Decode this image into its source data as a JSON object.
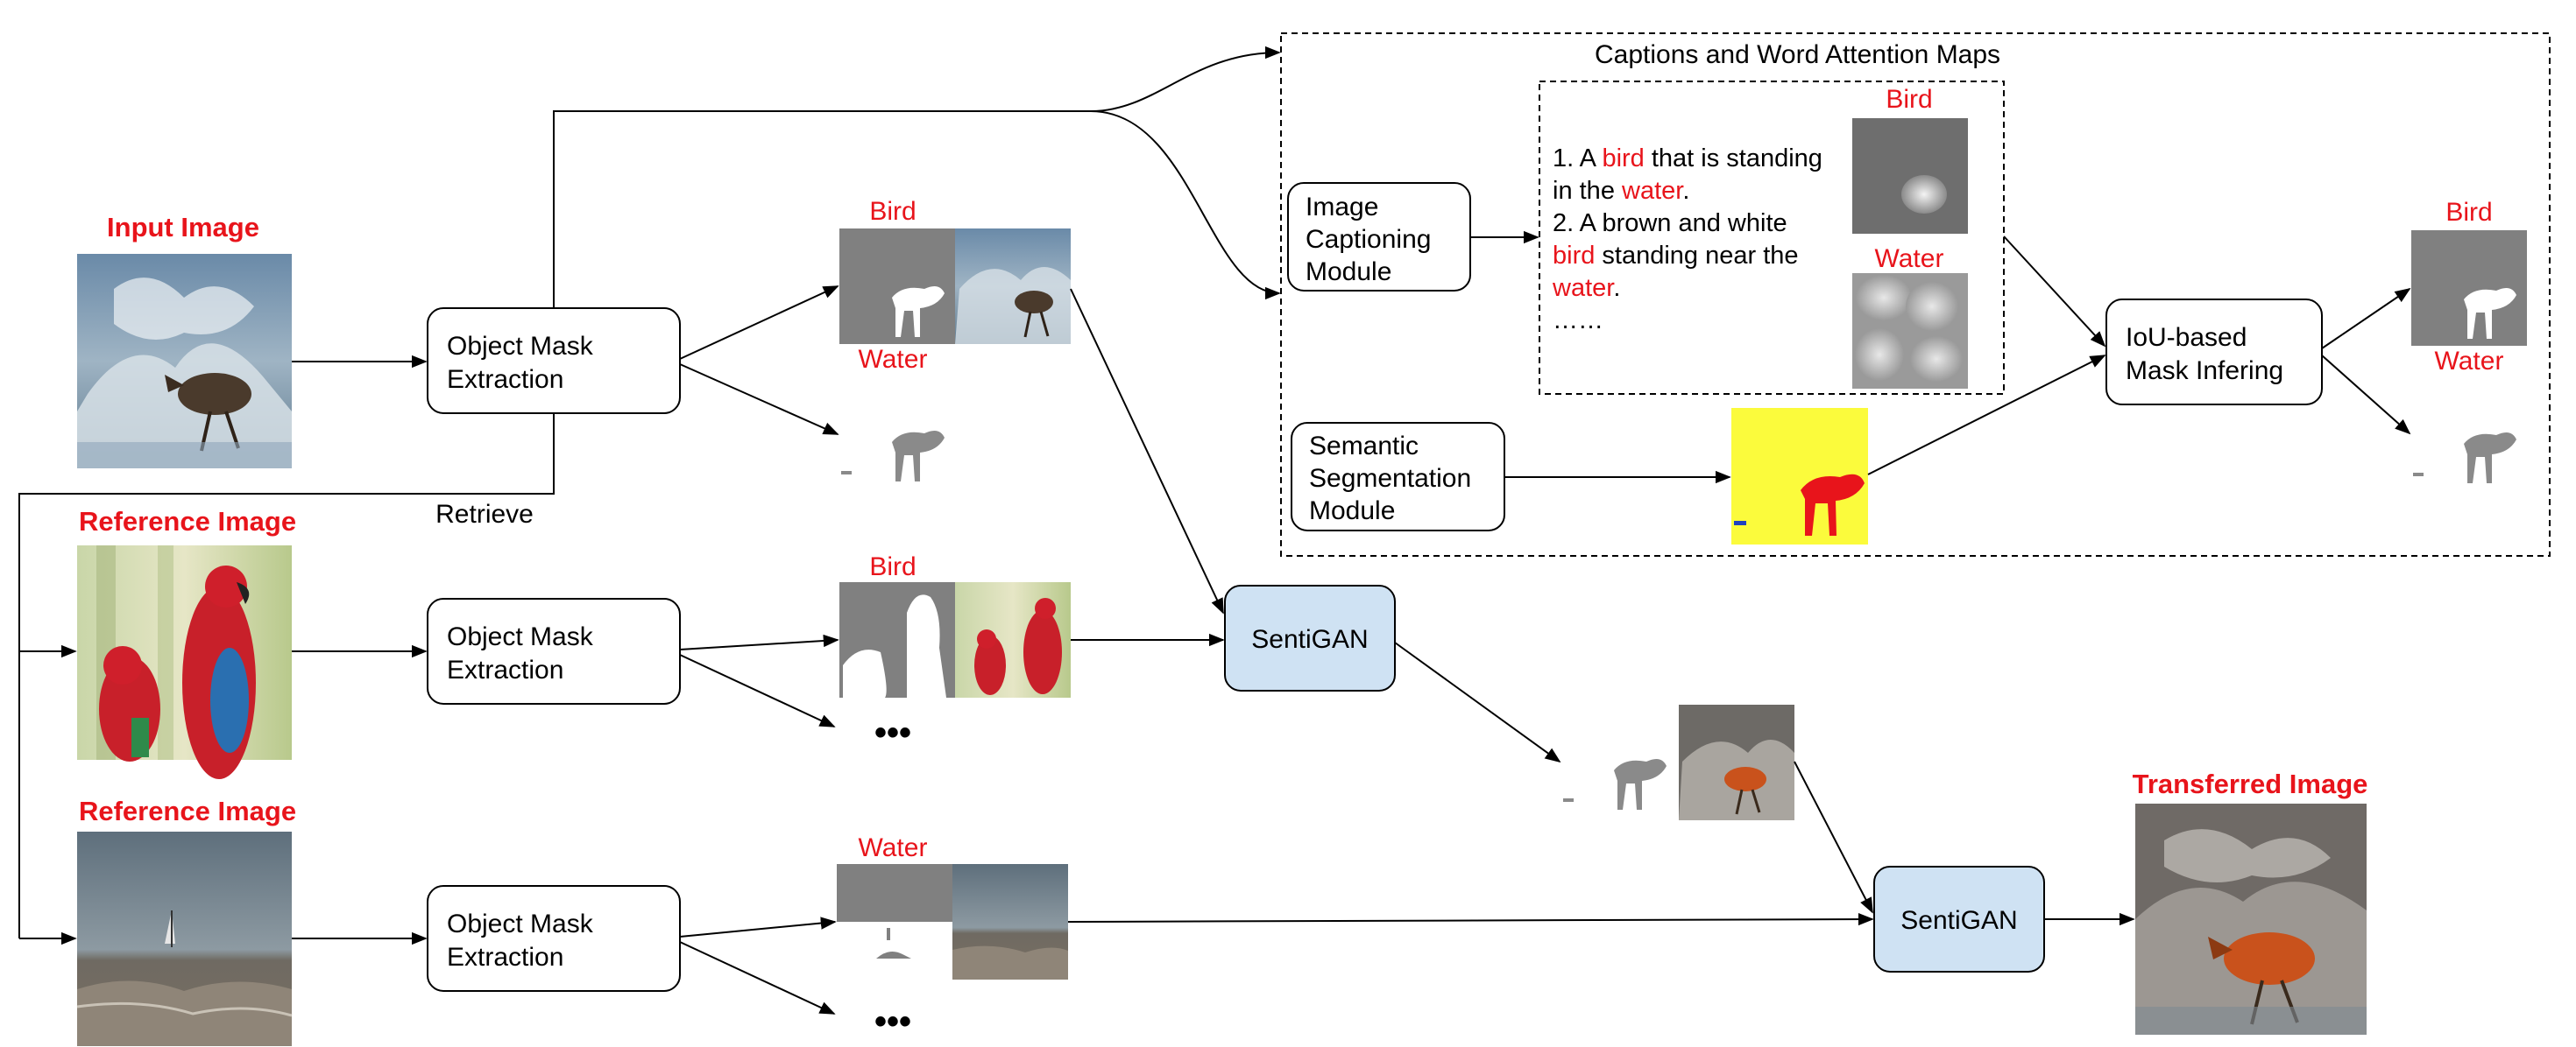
{
  "colors": {
    "accent_red": "#e8141b",
    "sentigan_fill": "#cfe2f3",
    "mask_gray": "#808080"
  },
  "images": {
    "input_title": "Input Image",
    "reference1_title": "Reference Image",
    "reference2_title": "Reference Image",
    "transferred_title": "Transferred Image"
  },
  "modules": {
    "object_mask_1": [
      "Object Mask",
      "Extraction"
    ],
    "object_mask_2": [
      "Object Mask",
      "Extraction"
    ],
    "object_mask_3": [
      "Object Mask",
      "Extraction"
    ],
    "image_captioning": [
      "Image",
      "Captioning",
      "Module"
    ],
    "semantic_segmentation": [
      "Semantic",
      "Segmentation",
      "Module"
    ],
    "iou_mask": [
      "IoU-based",
      "Mask Infering"
    ],
    "sentigan_1": "SentiGAN",
    "sentigan_2": "SentiGAN"
  },
  "retrieve_label": "Retrieve",
  "mask_labels": {
    "input_bird": "Bird",
    "input_water": "Water",
    "ref1_bird": "Bird",
    "ref2_water": "Water",
    "attn_bird": "Bird",
    "attn_water": "Water",
    "iou_bird": "Bird",
    "iou_water": "Water"
  },
  "captions_panel_title": "Captions and Word Attention Maps",
  "captions": {
    "line1_a": "1. A ",
    "line1_hl": "bird",
    "line1_b": " that is standing",
    "line2_a": "in the ",
    "line2_hl": "water",
    "line2_b": ".",
    "line3": "2. A brown and white",
    "line4_hl": "bird",
    "line4_b": " standing near the",
    "line5_hl": "water",
    "line5_b": ".",
    "line6": "……"
  },
  "ellipsis": "•••"
}
